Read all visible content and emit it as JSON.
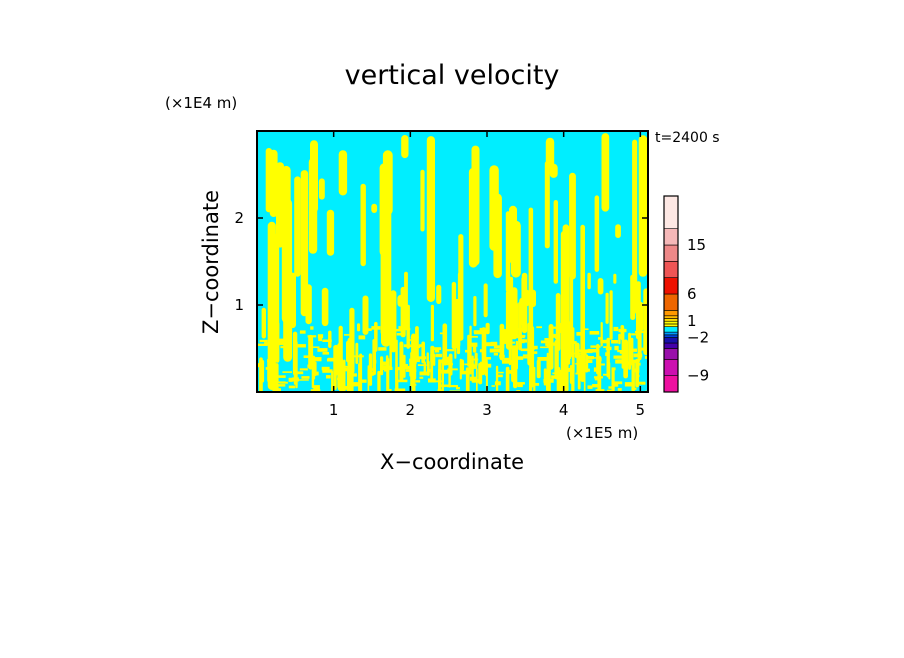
{
  "chart_data": {
    "type": "heatmap",
    "title": "vertical velocity",
    "xlabel": "X−coordinate",
    "ylabel": "Z−coordinate",
    "x_unit": "(×1E5 m)",
    "y_unit": "(×1E4 m)",
    "time_label": "t=2400 s",
    "xlim": [
      0,
      5.1
    ],
    "ylim": [
      0,
      3.0
    ],
    "x_ticks": [
      "1",
      "2",
      "3",
      "4",
      "5"
    ],
    "y_ticks": [
      "1",
      "2"
    ],
    "x_tick_values": [
      1,
      2,
      3,
      4,
      5
    ],
    "y_tick_values": [
      1,
      2
    ],
    "field_colors": {
      "negative": "#00eeff",
      "positive": "#ffff00"
    },
    "colorbar": {
      "labels": [
        "15",
        "6",
        "1",
        "−2",
        "−9"
      ],
      "label_values": [
        15,
        6,
        1,
        -2,
        -9
      ],
      "vmin": -12,
      "vmax": 24,
      "levels": [
        {
          "from": -12,
          "to": -9,
          "color": "#ee10a0"
        },
        {
          "from": -9,
          "to": -6,
          "color": "#cc10b0"
        },
        {
          "from": -6,
          "to": -4,
          "color": "#9910aa"
        },
        {
          "from": -4,
          "to": -3,
          "color": "#4400aa"
        },
        {
          "from": -3,
          "to": -2,
          "color": "#1810aa"
        },
        {
          "from": -2,
          "to": -1.5,
          "color": "#0044dd"
        },
        {
          "from": -1.5,
          "to": -1,
          "color": "#0099ff"
        },
        {
          "from": -1,
          "to": 0,
          "color": "#00eeff"
        },
        {
          "from": 0,
          "to": 0.5,
          "color": "#ffff00"
        },
        {
          "from": 0.5,
          "to": 1,
          "color": "#ffff00"
        },
        {
          "from": 1,
          "to": 1.5,
          "color": "#ffdd00"
        },
        {
          "from": 1.5,
          "to": 2,
          "color": "#ffbb00"
        },
        {
          "from": 2,
          "to": 3,
          "color": "#ff9900"
        },
        {
          "from": 3,
          "to": 6,
          "color": "#ee6600"
        },
        {
          "from": 6,
          "to": 9,
          "color": "#ee1100"
        },
        {
          "from": 9,
          "to": 12,
          "color": "#ee5555"
        },
        {
          "from": 12,
          "to": 15,
          "color": "#ee8888"
        },
        {
          "from": 15,
          "to": 18,
          "color": "#f5b8b8"
        },
        {
          "from": 18,
          "to": 24,
          "color": "#fde8e4"
        }
      ]
    }
  }
}
